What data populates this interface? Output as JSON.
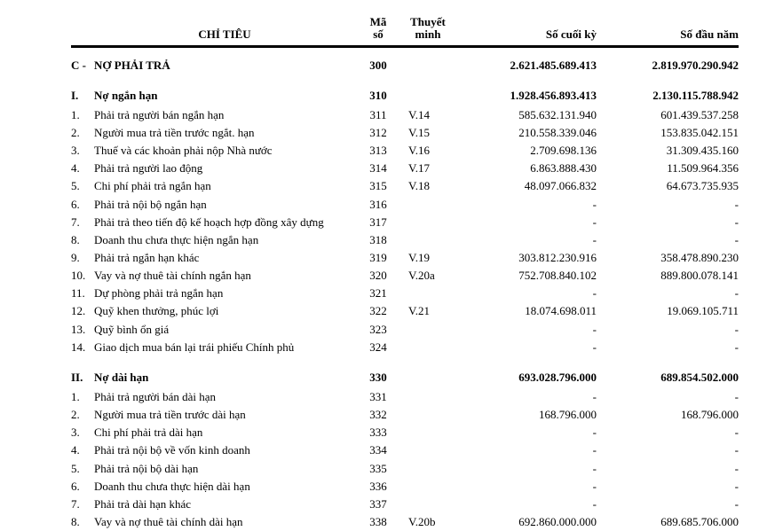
{
  "header": {
    "label": "CHỈ TIÊU",
    "ms1": "Mã",
    "ms2": "số",
    "tm1": "Thuyết",
    "tm2": "minh",
    "end": "Số cuối kỳ",
    "start": "Số đầu năm"
  },
  "sectionC": {
    "idx": "C -",
    "label": "NỢ PHẢI TRẢ",
    "ms": "300",
    "tm": "",
    "end": "2.621.485.689.413",
    "start": "2.819.970.290.942"
  },
  "groups": [
    {
      "idx": "I.",
      "label": "Nợ ngắn hạn",
      "ms": "310",
      "tm": "",
      "end": "1.928.456.893.413",
      "start": "2.130.115.788.942",
      "rows": [
        {
          "idx": "1.",
          "label": "Phải trả người bán ngắn hạn",
          "ms": "311",
          "tm": "V.14",
          "end": "585.632.131.940",
          "start": "601.439.537.258"
        },
        {
          "idx": "2.",
          "label": "Người mua trả tiền trước ngắt. hạn",
          "ms": "312",
          "tm": "V.15",
          "end": "210.558.339.046",
          "start": "153.835.042.151"
        },
        {
          "idx": "3.",
          "label": "Thuế và các khoản phải nộp Nhà nước",
          "ms": "313",
          "tm": "V.16",
          "end": "2.709.698.136",
          "start": "31.309.435.160"
        },
        {
          "idx": "4.",
          "label": "Phải trả người lao động",
          "ms": "314",
          "tm": "V.17",
          "end": "6.863.888.430",
          "start": "11.509.964.356"
        },
        {
          "idx": "5.",
          "label": "Chi phí phải trả ngắn hạn",
          "ms": "315",
          "tm": "V.18",
          "end": "48.097.066.832",
          "start": "64.673.735.935"
        },
        {
          "idx": "6.",
          "label": "Phải trả nội bộ ngắn hạn",
          "ms": "316",
          "tm": "",
          "end": "-",
          "start": "-"
        },
        {
          "idx": "7.",
          "label": "Phải trả theo tiến độ kế hoạch hợp đồng xây dựng",
          "ms": "317",
          "tm": "",
          "end": "-",
          "start": "-"
        },
        {
          "idx": "8.",
          "label": "Doanh thu chưa thực hiện ngắn hạn",
          "ms": "318",
          "tm": "",
          "end": "-",
          "start": "-"
        },
        {
          "idx": "9.",
          "label": "Phải trả ngắn hạn khác",
          "ms": "319",
          "tm": "V.19",
          "end": "303.812.230.916",
          "start": "358.478.890.230"
        },
        {
          "idx": "10.",
          "label": "Vay và nợ thuê tài chính ngắn hạn",
          "ms": "320",
          "tm": "V.20a",
          "end": "752.708.840.102",
          "start": "889.800.078.141"
        },
        {
          "idx": "11.",
          "label": "Dự phòng phải trả ngắn hạn",
          "ms": "321",
          "tm": "",
          "end": "-",
          "start": "-"
        },
        {
          "idx": "12.",
          "label": "Quỹ khen thưởng, phúc lợi",
          "ms": "322",
          "tm": "V.21",
          "end": "18.074.698.011",
          "start": "19.069.105.711"
        },
        {
          "idx": "13.",
          "label": "Quỹ bình ổn giá",
          "ms": "323",
          "tm": "",
          "end": "-",
          "start": "-"
        },
        {
          "idx": "14.",
          "label": "Giao dịch mua bán lại trái phiếu Chính phủ",
          "ms": "324",
          "tm": "",
          "end": "-",
          "start": "-"
        }
      ]
    },
    {
      "idx": "II.",
      "label": "Nợ dài hạn",
      "ms": "330",
      "tm": "",
      "end": "693.028.796.000",
      "start": "689.854.502.000",
      "rows": [
        {
          "idx": "1.",
          "label": "Phải trả người bán dài hạn",
          "ms": "331",
          "tm": "",
          "end": "-",
          "start": "-"
        },
        {
          "idx": "2.",
          "label": "Người mua trả tiền trước dài hạn",
          "ms": "332",
          "tm": "",
          "end": "168.796.000",
          "start": "168.796.000"
        },
        {
          "idx": "3.",
          "label": "Chi phí phải trả dài hạn",
          "ms": "333",
          "tm": "",
          "end": "-",
          "start": "-"
        },
        {
          "idx": "4.",
          "label": "Phải trả nội bộ về vốn kinh doanh",
          "ms": "334",
          "tm": "",
          "end": "-",
          "start": "-"
        },
        {
          "idx": "5.",
          "label": "Phải trả nội bộ dài hạn",
          "ms": "335",
          "tm": "",
          "end": "-",
          "start": "-"
        },
        {
          "idx": "6.",
          "label": "Doanh thu chưa thực hiện dài hạn",
          "ms": "336",
          "tm": "",
          "end": "-",
          "start": "-"
        },
        {
          "idx": "7.",
          "label": "Phải trả dài hạn khác",
          "ms": "337",
          "tm": "",
          "end": "-",
          "start": "-"
        },
        {
          "idx": "8.",
          "label": "Vay và nợ thuê tài chính dài hạn",
          "ms": "338",
          "tm": "V.20b",
          "end": "692.860.000.000",
          "start": "689.685.706.000"
        }
      ]
    }
  ]
}
